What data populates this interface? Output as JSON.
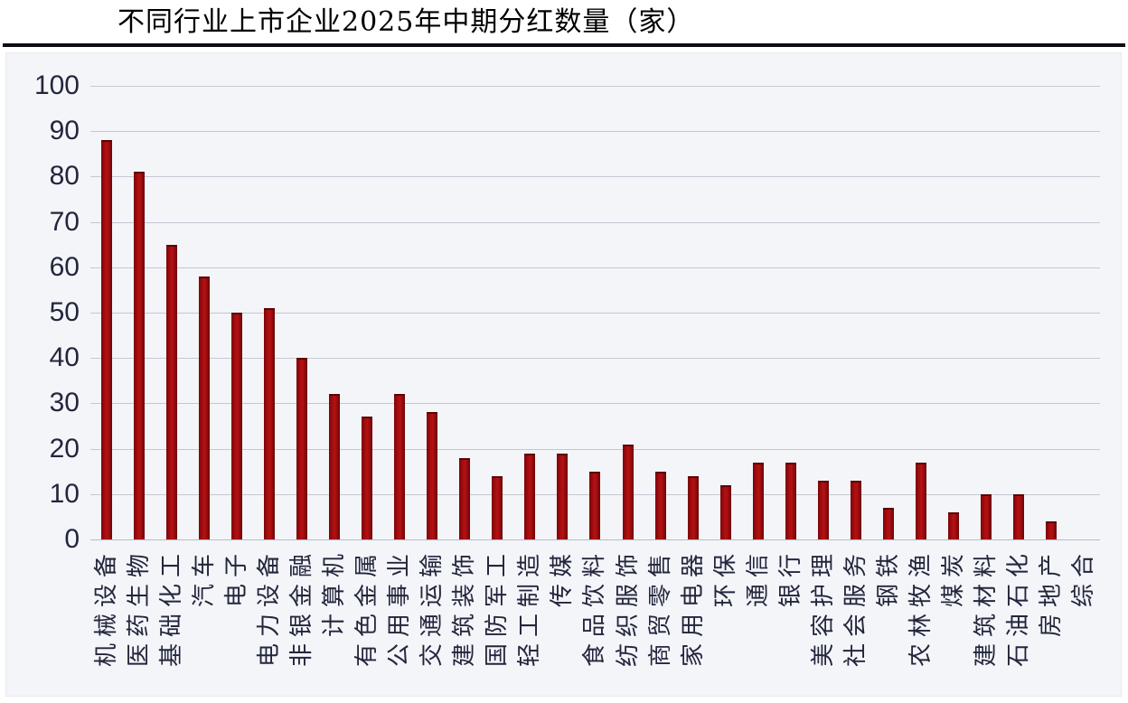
{
  "header": {
    "title": "不同行业上市企业2025年中期分红数量（家）"
  },
  "chart_data": {
    "type": "bar",
    "title": "不同行业上市企业2025年中期分红数量（家）",
    "categories": [
      "机械设备",
      "医药生物",
      "基础化工",
      "汽车",
      "电子",
      "电力设备",
      "非银金融",
      "计算机",
      "有色金属",
      "公用事业",
      "交通运输",
      "建筑装饰",
      "国防军工",
      "轻工制造",
      "传媒",
      "食品饮料",
      "纺织服饰",
      "商贸零售",
      "家用电器",
      "环保",
      "通信",
      "银行",
      "美容护理",
      "社会服务",
      "钢铁",
      "农林牧渔",
      "煤炭",
      "建筑材料",
      "石油石化",
      "房地产",
      "综合"
    ],
    "values": [
      88,
      81,
      65,
      58,
      50,
      51,
      40,
      32,
      27,
      32,
      28,
      18,
      14,
      19,
      19,
      15,
      21,
      15,
      14,
      12,
      17,
      17,
      13,
      13,
      7,
      17,
      6,
      10,
      10,
      4,
      0
    ],
    "xlabel": "",
    "ylabel": "",
    "ylim": [
      0,
      100
    ],
    "yticks": [
      0,
      10,
      20,
      30,
      40,
      50,
      60,
      70,
      80,
      90,
      100
    ],
    "grid": "horizontal",
    "legend_position": "none",
    "bar_color": "#a50d10",
    "gridline_color": "#c3c8d3",
    "axis_text_color": "#23263c"
  }
}
